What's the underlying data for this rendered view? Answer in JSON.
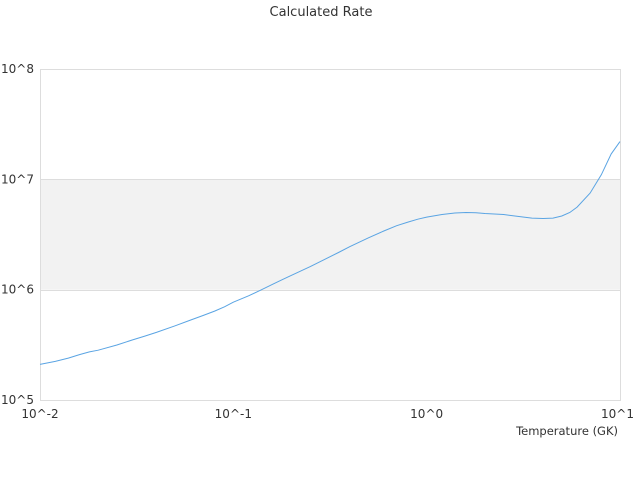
{
  "chart_data": {
    "type": "line",
    "title": "Calculated Rate",
    "xlabel": "Temperature (GK)",
    "ylabel": "",
    "x_scale": "log",
    "y_scale": "log",
    "xlim": [
      0.01,
      10
    ],
    "ylim": [
      100000,
      100000000
    ],
    "x_ticks": [
      {
        "value": 0.01,
        "label": "10^-2"
      },
      {
        "value": 0.1,
        "label": "10^-1"
      },
      {
        "value": 1,
        "label": "10^0"
      },
      {
        "value": 10,
        "label": "10^1"
      }
    ],
    "y_ticks": [
      {
        "value": 100000,
        "label": "10^5"
      },
      {
        "value": 1000000,
        "label": "10^6"
      },
      {
        "value": 10000000,
        "label": "10^7"
      },
      {
        "value": 100000000,
        "label": "10^8"
      }
    ],
    "shaded_band": [
      1000000,
      10000000
    ],
    "grid": true,
    "legend": "none",
    "colors": {
      "line": "#5aa4e3",
      "band": "#f2f2f2",
      "grid": "#dddddd"
    },
    "series": [
      {
        "x": [
          0.01,
          0.012,
          0.014,
          0.016,
          0.018,
          0.02,
          0.025,
          0.03,
          0.035,
          0.04,
          0.05,
          0.06,
          0.07,
          0.08,
          0.09,
          0.1,
          0.12,
          0.14,
          0.16,
          0.18,
          0.2,
          0.25,
          0.3,
          0.35,
          0.4,
          0.5,
          0.6,
          0.7,
          0.8,
          0.9,
          1.0,
          1.2,
          1.4,
          1.6,
          1.8,
          2.0,
          2.5,
          3.0,
          3.5,
          4.0,
          4.5,
          5.0,
          5.5,
          6.0,
          7.0,
          8.0,
          9.0,
          10.0
        ],
        "y": [
          210000,
          224000,
          240000,
          258000,
          273000,
          283000,
          315000,
          350000,
          380000,
          410000,
          470000,
          530000,
          585000,
          640000,
          700000,
          770000,
          880000,
          1000000,
          1120000,
          1240000,
          1350000,
          1620000,
          1900000,
          2170000,
          2450000,
          2950000,
          3400000,
          3800000,
          4100000,
          4350000,
          4550000,
          4800000,
          4950000,
          5000000,
          4980000,
          4900000,
          4800000,
          4600000,
          4450000,
          4420000,
          4450000,
          4650000,
          5000000,
          5600000,
          7500000,
          11000000,
          17000000,
          22000000
        ]
      }
    ]
  }
}
